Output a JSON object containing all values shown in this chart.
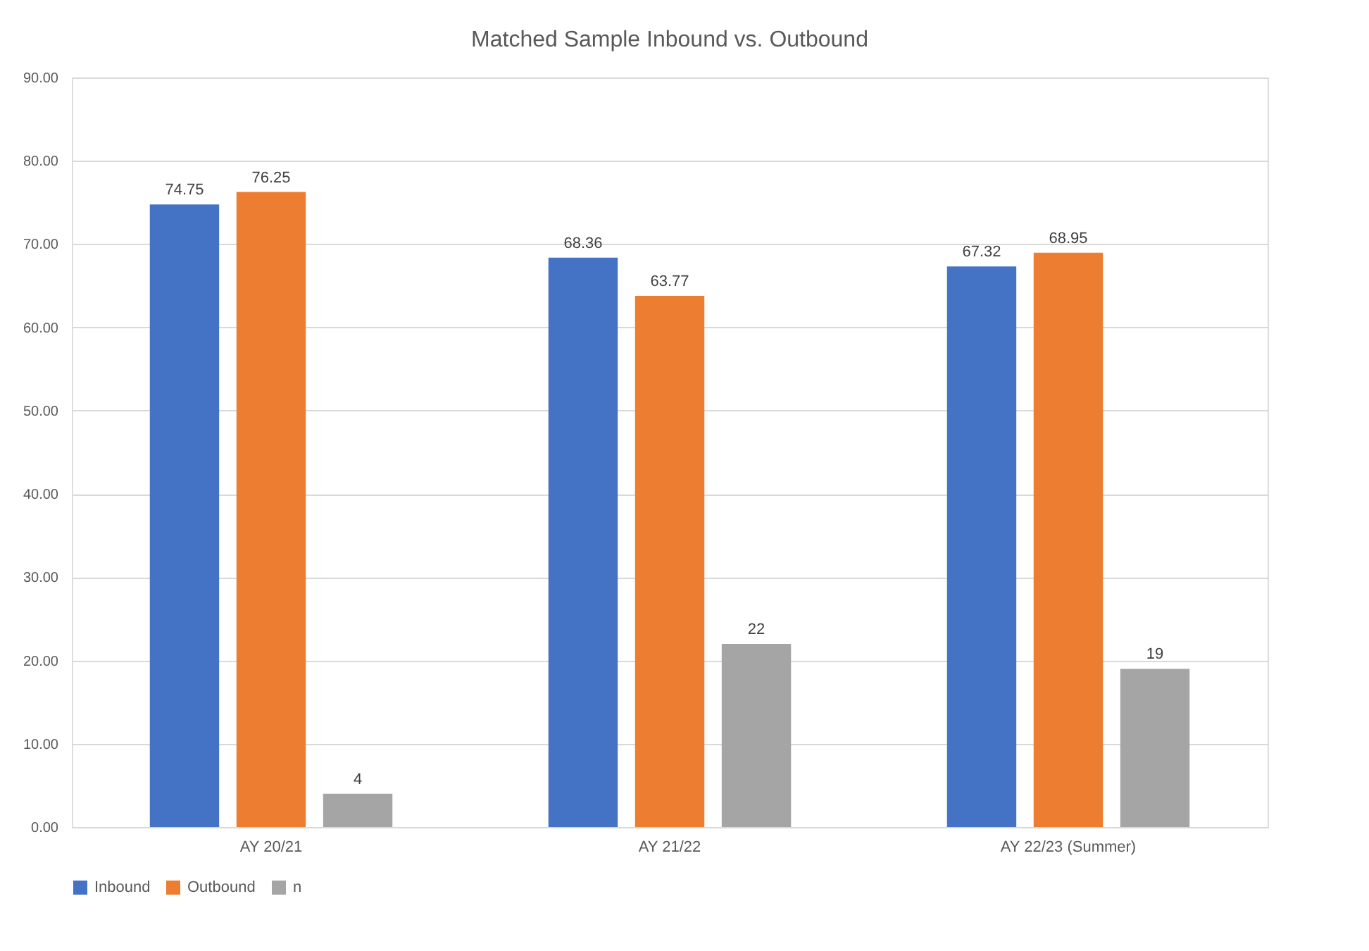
{
  "chart_data": {
    "type": "bar",
    "title": "Matched Sample Inbound vs. Outbound",
    "categories": [
      "AY 20/21",
      "AY 21/22",
      "AY 22/23 (Summer)"
    ],
    "series": [
      {
        "name": "Inbound",
        "color": "#4472c4",
        "values": [
          74.75,
          68.36,
          67.32
        ]
      },
      {
        "name": "Outbound",
        "color": "#ed7d31",
        "values": [
          76.25,
          63.77,
          68.95
        ]
      },
      {
        "name": "n",
        "color": "#a5a5a5",
        "values": [
          4,
          22,
          19
        ]
      }
    ],
    "ylim": [
      0,
      90
    ],
    "yticks": [
      {
        "value": 0,
        "label": "0.00"
      },
      {
        "value": 10,
        "label": "10.00"
      },
      {
        "value": 20,
        "label": "20.00"
      },
      {
        "value": 30,
        "label": "30.00"
      },
      {
        "value": 40,
        "label": "40.00"
      },
      {
        "value": 50,
        "label": "50.00"
      },
      {
        "value": 60,
        "label": "60.00"
      },
      {
        "value": 70,
        "label": "70.00"
      },
      {
        "value": 80,
        "label": "80.00"
      },
      {
        "value": 90,
        "label": "90.00"
      }
    ],
    "grid": "y",
    "legend": "bottom",
    "data_labels": true
  }
}
